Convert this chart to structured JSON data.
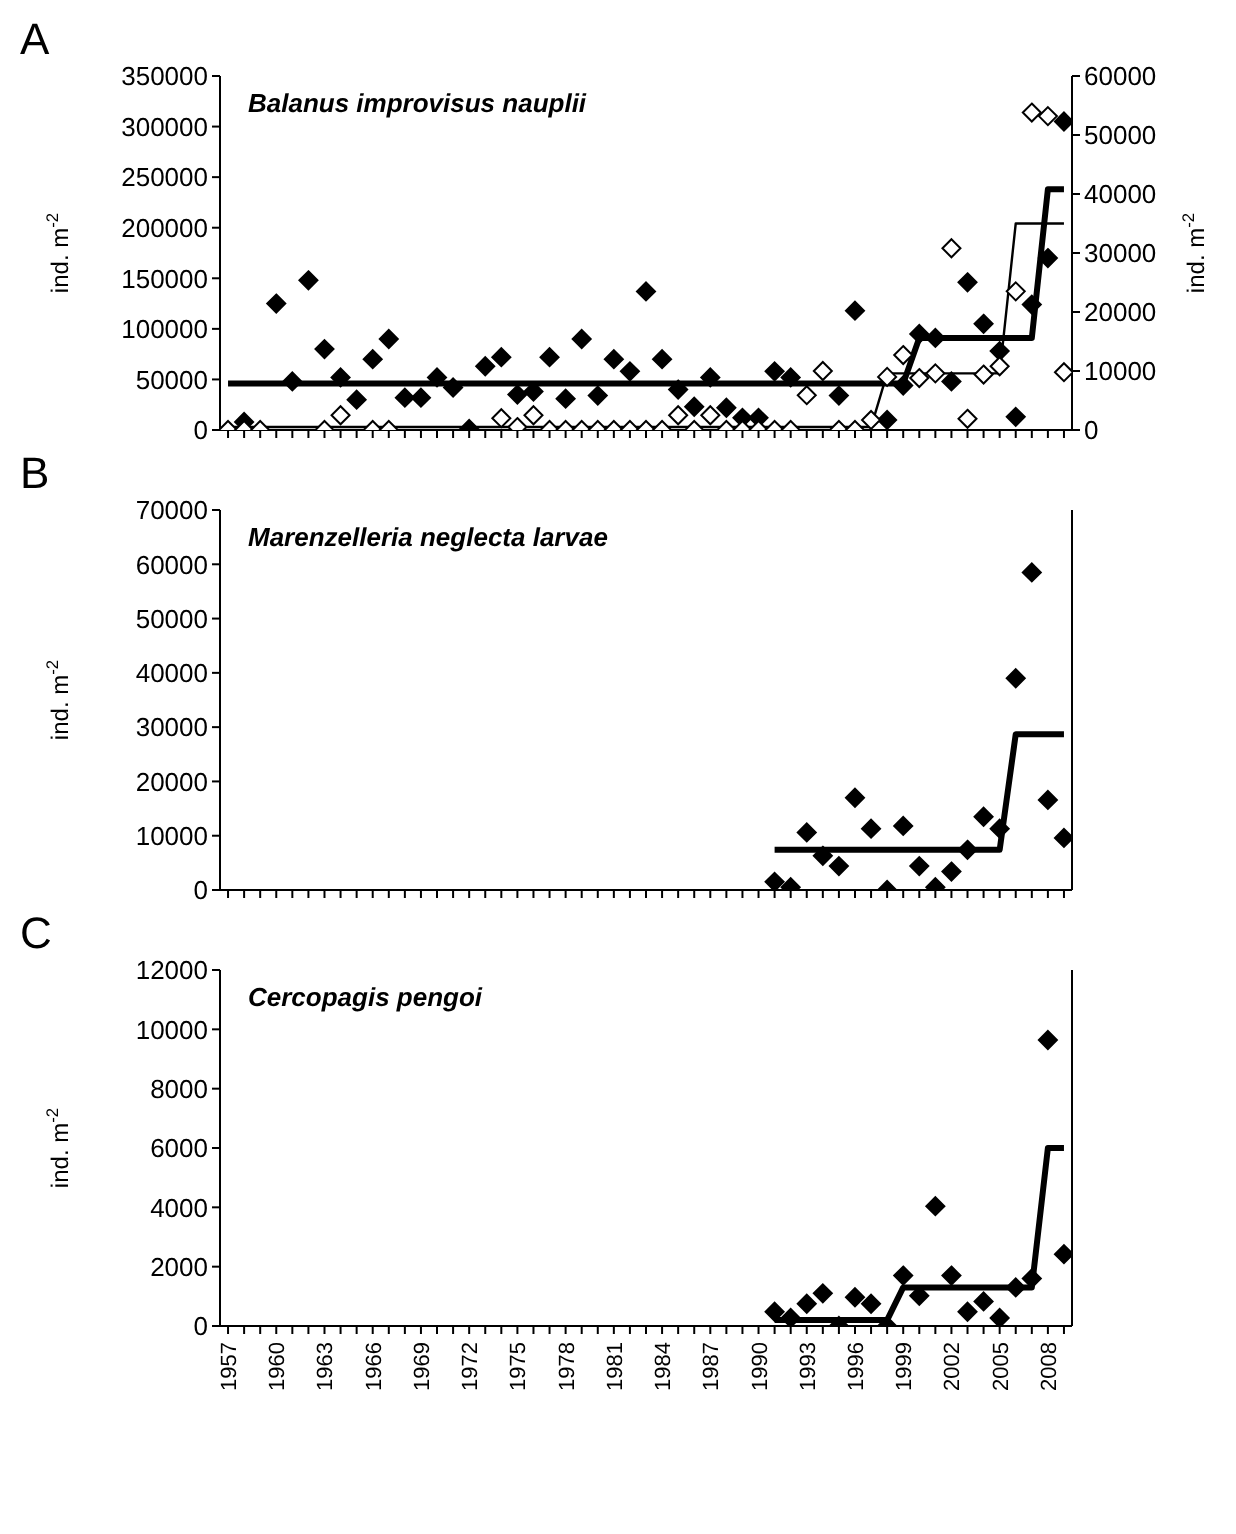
{
  "chart_data": [
    {
      "type": "scatter",
      "title": "A",
      "annotations": [
        "Balanus improvisus nauplii"
      ],
      "ylabel": "ind. m$^{-2}$",
      "y2label": "ind. m$^{-2}$",
      "tick_labels": "y",
      "xlim": [
        1956.5,
        2009.5
      ],
      "ylim": [
        0,
        350000
      ],
      "yticks": [
        0,
        50000,
        100000,
        150000,
        200000,
        250000,
        300000,
        350000
      ],
      "y2lim": [
        0,
        60000
      ],
      "y2ticks": [
        0,
        10000,
        20000,
        30000,
        40000,
        50000,
        60000
      ],
      "xticks": [
        1957,
        {
          "value": 1958,
          "label": null
        },
        {
          "value": 1959,
          "label": null
        },
        1960,
        {
          "value": 1961,
          "label": null
        },
        {
          "value": 1962,
          "label": null
        },
        1963,
        {
          "value": 1964,
          "label": null
        },
        {
          "value": 1965,
          "label": null
        },
        1966,
        {
          "value": 1967,
          "label": null
        },
        {
          "value": 1968,
          "label": null
        },
        1969,
        {
          "value": 1970,
          "label": null
        },
        {
          "value": 1971,
          "label": null
        },
        1972,
        {
          "value": 1973,
          "label": null
        },
        {
          "value": 1974,
          "label": null
        },
        1975,
        {
          "value": 1976,
          "label": null
        },
        {
          "value": 1977,
          "label": null
        },
        1978,
        {
          "value": 1979,
          "label": null
        },
        {
          "value": 1980,
          "label": null
        },
        1981,
        {
          "value": 1982,
          "label": null
        },
        {
          "value": 1983,
          "label": null
        },
        1984,
        {
          "value": 1985,
          "label": null
        },
        {
          "value": 1986,
          "label": null
        },
        1987,
        {
          "value": 1988,
          "label": null
        },
        {
          "value": 1989,
          "label": null
        },
        1990,
        {
          "value": 1991,
          "label": null
        },
        {
          "value": 1992,
          "label": null
        },
        1993,
        {
          "value": 1994,
          "label": null
        },
        {
          "value": 1995,
          "label": null
        },
        1996,
        {
          "value": 1997,
          "label": null
        },
        {
          "value": 1998,
          "label": null
        },
        1999,
        {
          "value": 2000,
          "label": null
        },
        {
          "value": 2001,
          "label": null
        },
        2002,
        {
          "value": 2003,
          "label": null
        },
        {
          "value": 2004,
          "label": null
        },
        2005,
        {
          "value": 2006,
          "label": null
        },
        {
          "value": 2007,
          "label": null
        },
        2008,
        {
          "value": 2009,
          "label": null
        }
      ],
      "series": [
        {
          "marker": "diamond",
          "color": "#000000",
          "x": [
            1958,
            1960,
            1961,
            1962,
            1963,
            1964,
            1965,
            1966,
            1967,
            1968,
            1969,
            1970,
            1971,
            1972,
            1973,
            1974,
            1975,
            1976,
            1977,
            1978,
            1979,
            1980,
            1981,
            1982,
            1983,
            1984,
            1985,
            1986,
            1987,
            1988,
            1989,
            1990,
            1991,
            1992,
            1995,
            1996,
            1998,
            1999,
            2000,
            2001,
            2002,
            2003,
            2004,
            2005,
            2006,
            2007,
            2008,
            2009
          ],
          "values": [
            8000,
            125000,
            48000,
            148000,
            80000,
            52000,
            30000,
            70000,
            90000,
            32000,
            32000,
            52000,
            42000,
            1000,
            63000,
            72000,
            35000,
            38000,
            72000,
            31000,
            90000,
            34000,
            70000,
            58000,
            137000,
            70000,
            40000,
            23000,
            52000,
            22000,
            12000,
            12000,
            58000,
            52000,
            34000,
            118000,
            10000,
            44000,
            95000,
            91000,
            48000,
            146000,
            105000,
            78000,
            13000,
            124000,
            170000,
            305000
          ]
        },
        {
          "marker": "diamond",
          "color": "#ffffff",
          "axis": "y2",
          "x": [
            1957,
            1958,
            1959,
            1963,
            1964,
            1966,
            1967,
            1974,
            1975,
            1976,
            1977,
            1978,
            1979,
            1980,
            1981,
            1982,
            1983,
            1984,
            1985,
            1986,
            1987,
            1988,
            1989,
            1990,
            1991,
            1992,
            1993,
            1994,
            1995,
            1996,
            1997,
            1998,
            1999,
            2000,
            2001,
            2002,
            2003,
            2004,
            2005,
            2006,
            2007,
            2008,
            2009
          ],
          "values": [
            0,
            0,
            0,
            0,
            2500,
            0,
            0,
            2000,
            500,
            2500,
            0,
            0,
            0,
            0,
            0,
            0,
            0,
            0,
            2500,
            0,
            2500,
            0,
            0,
            0,
            0,
            0,
            5900,
            10000,
            0,
            0,
            1700,
            9000,
            12700,
            8800,
            9600,
            30800,
            1900,
            9400,
            10800,
            23500,
            53800,
            53200,
            9800
          ]
        },
        {
          "type": "line",
          "marker": "none",
          "color": "#000000",
          "x": [
            1957,
            1999,
            2000,
            2007,
            2008,
            2009
          ],
          "values": [
            46000,
            46000,
            91000,
            91000,
            238000,
            238000
          ]
        },
        {
          "type": "line",
          "marker": "none",
          "color": "#000000",
          "axis": "y2",
          "x": [
            1957,
            1997,
            1998,
            2005,
            2006,
            2009
          ],
          "values": [
            500,
            500,
            9600,
            9600,
            35000,
            35000
          ]
        }
      ]
    },
    {
      "type": "scatter",
      "title": "B",
      "annotations": [
        "Marenzelleria neglecta larvae"
      ],
      "ylabel": "ind. m$^{-2}$",
      "tick_labels": "y",
      "xlim": [
        1956.5,
        2009.5
      ],
      "ylim": [
        0,
        70000
      ],
      "yticks": [
        0,
        10000,
        20000,
        30000,
        40000,
        50000,
        60000,
        70000
      ],
      "xticks": [
        1957,
        {
          "value": 1958,
          "label": null
        },
        {
          "value": 1959,
          "label": null
        },
        1960,
        {
          "value": 1961,
          "label": null
        },
        {
          "value": 1962,
          "label": null
        },
        1963,
        {
          "value": 1964,
          "label": null
        },
        {
          "value": 1965,
          "label": null
        },
        1966,
        {
          "value": 1967,
          "label": null
        },
        {
          "value": 1968,
          "label": null
        },
        1969,
        {
          "value": 1970,
          "label": null
        },
        {
          "value": 1971,
          "label": null
        },
        1972,
        {
          "value": 1973,
          "label": null
        },
        {
          "value": 1974,
          "label": null
        },
        1975,
        {
          "value": 1976,
          "label": null
        },
        {
          "value": 1977,
          "label": null
        },
        1978,
        {
          "value": 1979,
          "label": null
        },
        {
          "value": 1980,
          "label": null
        },
        1981,
        {
          "value": 1982,
          "label": null
        },
        {
          "value": 1983,
          "label": null
        },
        1984,
        {
          "value": 1985,
          "label": null
        },
        {
          "value": 1986,
          "label": null
        },
        1987,
        {
          "value": 1988,
          "label": null
        },
        {
          "value": 1989,
          "label": null
        },
        1990,
        {
          "value": 1991,
          "label": null
        },
        {
          "value": 1992,
          "label": null
        },
        1993,
        {
          "value": 1994,
          "label": null
        },
        {
          "value": 1995,
          "label": null
        },
        1996,
        {
          "value": 1997,
          "label": null
        },
        {
          "value": 1998,
          "label": null
        },
        1999,
        {
          "value": 2000,
          "label": null
        },
        {
          "value": 2001,
          "label": null
        },
        2002,
        {
          "value": 2003,
          "label": null
        },
        {
          "value": 2004,
          "label": null
        },
        2005,
        {
          "value": 2006,
          "label": null
        },
        {
          "value": 2007,
          "label": null
        },
        2008,
        {
          "value": 2009,
          "label": null
        }
      ],
      "series": [
        {
          "marker": "diamond",
          "color": "#000000",
          "x": [
            1991,
            1992,
            1993,
            1994,
            1995,
            1996,
            1997,
            1998,
            1999,
            2000,
            2001,
            2002,
            2003,
            2004,
            2005,
            2006,
            2007,
            2008,
            2009
          ],
          "values": [
            1500,
            500,
            10600,
            6300,
            4400,
            17000,
            11300,
            0,
            11800,
            4400,
            500,
            3400,
            7400,
            13500,
            11300,
            39000,
            58500,
            16600,
            9600
          ]
        },
        {
          "type": "line",
          "marker": "none",
          "color": "#000000",
          "x": [
            1991,
            2005,
            2006,
            2009
          ],
          "values": [
            7400,
            7400,
            28700,
            28700
          ]
        }
      ]
    },
    {
      "type": "scatter",
      "title": "C",
      "annotations": [
        "Cercopagis pengoi"
      ],
      "ylabel": "ind. m$^{-2}$",
      "xlim": [
        1956.5,
        2009.5
      ],
      "ylim": [
        0,
        12000
      ],
      "yticks": [
        0,
        2000,
        4000,
        6000,
        8000,
        10000,
        12000
      ],
      "xticks": [
        1957,
        {
          "value": 1958,
          "label": null
        },
        {
          "value": 1959,
          "label": null
        },
        1960,
        {
          "value": 1961,
          "label": null
        },
        {
          "value": 1962,
          "label": null
        },
        1963,
        {
          "value": 1964,
          "label": null
        },
        {
          "value": 1965,
          "label": null
        },
        1966,
        {
          "value": 1967,
          "label": null
        },
        {
          "value": 1968,
          "label": null
        },
        1969,
        {
          "value": 1970,
          "label": null
        },
        {
          "value": 1971,
          "label": null
        },
        1972,
        {
          "value": 1973,
          "label": null
        },
        {
          "value": 1974,
          "label": null
        },
        1975,
        {
          "value": 1976,
          "label": null
        },
        {
          "value": 1977,
          "label": null
        },
        1978,
        {
          "value": 1979,
          "label": null
        },
        {
          "value": 1980,
          "label": null
        },
        1981,
        {
          "value": 1982,
          "label": null
        },
        {
          "value": 1983,
          "label": null
        },
        1984,
        {
          "value": 1985,
          "label": null
        },
        {
          "value": 1986,
          "label": null
        },
        1987,
        {
          "value": 1988,
          "label": null
        },
        {
          "value": 1989,
          "label": null
        },
        1990,
        {
          "value": 1991,
          "label": null
        },
        {
          "value": 1992,
          "label": null
        },
        1993,
        {
          "value": 1994,
          "label": null
        },
        {
          "value": 1995,
          "label": null
        },
        1996,
        {
          "value": 1997,
          "label": null
        },
        {
          "value": 1998,
          "label": null
        },
        1999,
        {
          "value": 2000,
          "label": null
        },
        {
          "value": 2001,
          "label": null
        },
        2002,
        {
          "value": 2003,
          "label": null
        },
        {
          "value": 2004,
          "label": null
        },
        2005,
        {
          "value": 2006,
          "label": null
        },
        {
          "value": 2007,
          "label": null
        },
        2008,
        {
          "value": 2009,
          "label": null
        }
      ],
      "series": [
        {
          "marker": "diamond",
          "color": "#000000",
          "x": [
            1991,
            1992,
            1993,
            1994,
            1995,
            1996,
            1997,
            1998,
            1999,
            2000,
            2001,
            2002,
            2003,
            2004,
            2005,
            2006,
            2007,
            2008,
            2009
          ],
          "values": [
            480,
            270,
            750,
            1100,
            0,
            970,
            750,
            0,
            1700,
            1020,
            4040,
            1700,
            480,
            830,
            270,
            1300,
            1600,
            9640,
            2420
          ]
        },
        {
          "type": "line",
          "marker": "none",
          "color": "#000000",
          "x": [
            1991,
            1998,
            1999,
            2007,
            2008,
            2009
          ],
          "values": [
            200,
            200,
            1300,
            1300,
            6000,
            6000
          ]
        }
      ]
    }
  ]
}
